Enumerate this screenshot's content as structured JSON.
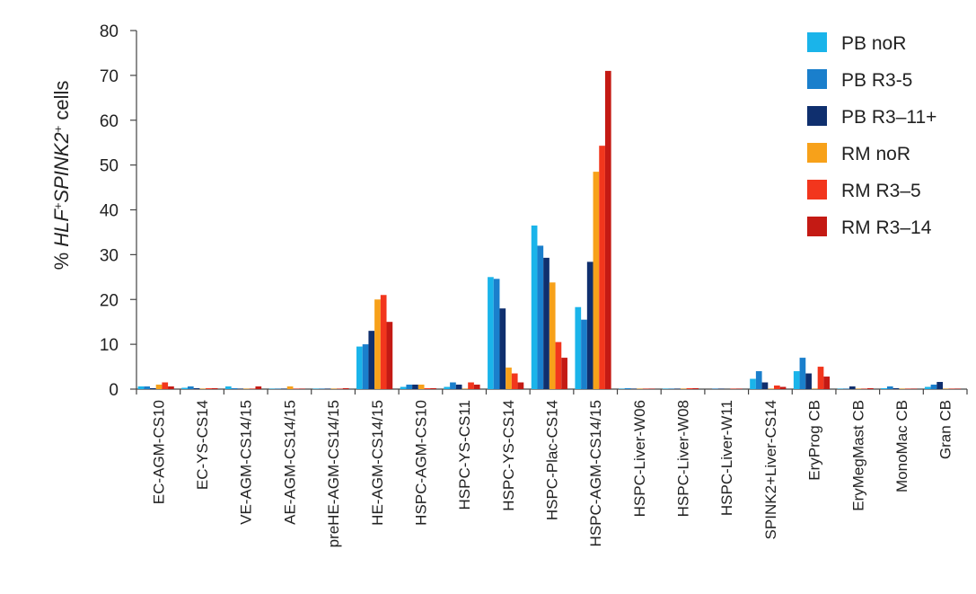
{
  "chart_data": {
    "type": "bar",
    "ylabel": {
      "prefix": "% ",
      "gene1": "HLF",
      "sup1": "+",
      "gene2": "SPINK2",
      "sup2": "+",
      "suffix": " cells"
    },
    "ylim": [
      0,
      80
    ],
    "yticks": [
      "0",
      "10",
      "20",
      "30",
      "40",
      "50",
      "60",
      "70",
      "80"
    ],
    "legend_position": "top-right",
    "categories": [
      "EC-AGM-CS10",
      "EC-YS-CS14",
      "VE-AGM-CS14/15",
      "AE-AGM-CS14/15",
      "preHE-AGM-CS14/15",
      "HE-AGM-CS14/15",
      "HSPC-AGM-CS10",
      "HSPC-YS-CS11",
      "HSPC-YS-CS14",
      "HSPC-Plac-CS14",
      "HSPC-AGM-CS14/15",
      "HSPC-Liver-W06",
      "HSPC-Liver-W08",
      "HSPC-Liver-W11",
      "SPINK2+Liver-CS14",
      "EryProg CB",
      "EryMegMast CB",
      "MonoMac CB",
      "Gran CB"
    ],
    "series": [
      {
        "name": "PB noR",
        "color": "#1ab4ea",
        "values": [
          0.6,
          0.3,
          0.6,
          0.1,
          0.1,
          9.5,
          0.5,
          0.5,
          25,
          36.5,
          18.3,
          0.1,
          0.1,
          0,
          2.3,
          4,
          0.1,
          0.2,
          0.5
        ]
      },
      {
        "name": "PB R3-5",
        "color": "#1a7fcc",
        "values": [
          0.6,
          0.6,
          0.2,
          0.1,
          0.1,
          10,
          1,
          1.5,
          24.6,
          32,
          15.5,
          0.2,
          0.1,
          0.1,
          4,
          7,
          0.1,
          0.6,
          1
        ]
      },
      {
        "name": "PB R3–11+",
        "color": "#0f2f6e",
        "values": [
          0.2,
          0.2,
          0.1,
          0.1,
          0.1,
          13,
          1,
          1,
          18,
          29.3,
          28.4,
          0.1,
          0.1,
          0.1,
          1.5,
          3.5,
          0.6,
          0.2,
          1.6
        ]
      },
      {
        "name": "RM noR",
        "color": "#f7a11a",
        "values": [
          1,
          0.1,
          0.1,
          0.6,
          0.1,
          20,
          1,
          0.1,
          4.8,
          23.8,
          48.5,
          0.1,
          0.1,
          0,
          0.1,
          0.1,
          0.1,
          0.1,
          0.1
        ]
      },
      {
        "name": "RM R3–5",
        "color": "#f2361d",
        "values": [
          1.5,
          0.2,
          0.1,
          0.1,
          0.1,
          21,
          0.2,
          1.5,
          3.5,
          10.5,
          54.3,
          0.1,
          0.2,
          0.1,
          0.8,
          5,
          0.1,
          0.1,
          0.1
        ]
      },
      {
        "name": "RM R3–14",
        "color": "#c41a14",
        "values": [
          0.6,
          0.2,
          0.6,
          0.1,
          0.2,
          15,
          0.2,
          1,
          1.5,
          7,
          71,
          0.1,
          0.2,
          0.1,
          0.5,
          2.8,
          0.2,
          0.1,
          0.1
        ]
      }
    ]
  }
}
